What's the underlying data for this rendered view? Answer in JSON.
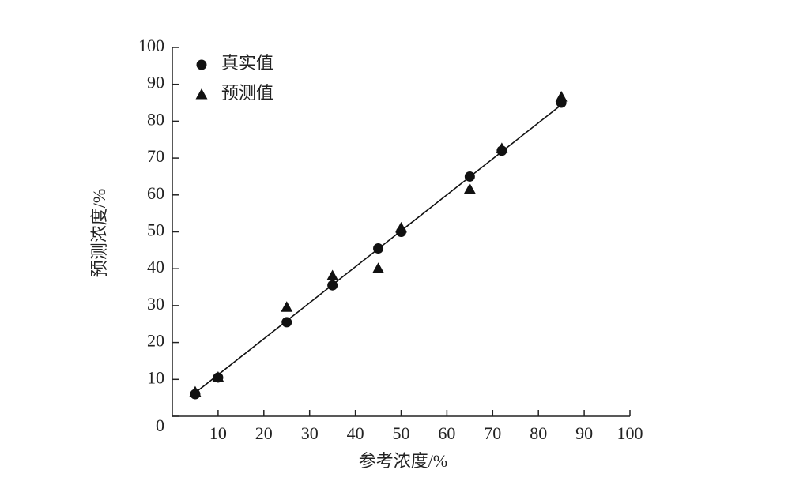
{
  "chart_data": {
    "type": "scatter",
    "x_label": "参考浓度/%",
    "y_label": "预测浓度/%",
    "xlim": [
      0,
      100
    ],
    "ylim": [
      0,
      100
    ],
    "xticks": [
      10,
      20,
      30,
      40,
      50,
      60,
      70,
      80,
      90,
      100
    ],
    "yticks": [
      0,
      10,
      20,
      30,
      40,
      50,
      60,
      70,
      80,
      90,
      100
    ],
    "legend": "upper left",
    "series": [
      {
        "name": "真实值",
        "marker": "circle",
        "color": "#111",
        "x": [
          5,
          10,
          25,
          35,
          45,
          50,
          65,
          72,
          85
        ],
        "values": [
          6,
          10.5,
          25.5,
          35.5,
          45.5,
          50,
          65,
          72,
          85
        ]
      },
      {
        "name": "预测值",
        "marker": "triangle",
        "color": "#111",
        "x": [
          5,
          10,
          25,
          35,
          45,
          50,
          65,
          72,
          85
        ],
        "values": [
          6.5,
          10.5,
          29.5,
          38,
          40,
          51,
          61.5,
          72.5,
          86.5
        ]
      }
    ],
    "fit_line": {
      "color": "#111",
      "x": [
        4,
        86
      ],
      "values": [
        5.4,
        85.4
      ]
    }
  }
}
